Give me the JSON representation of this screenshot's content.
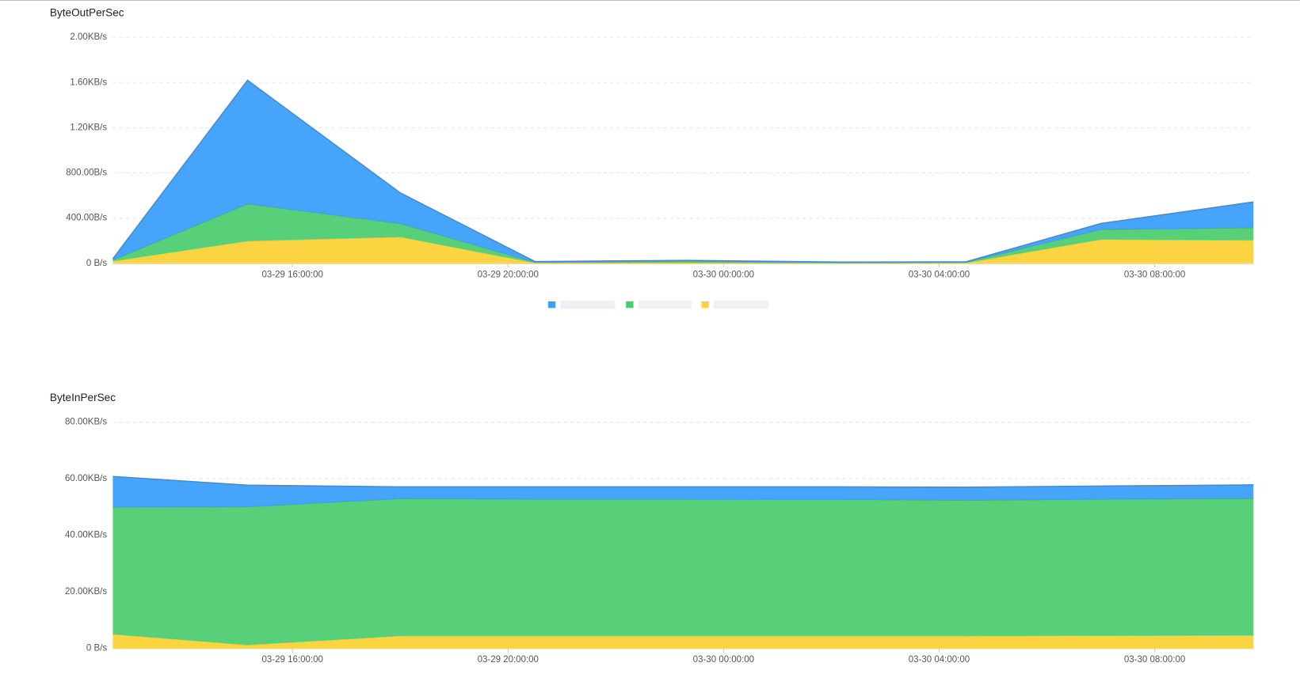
{
  "chart_data": [
    {
      "type": "area",
      "stacked": true,
      "title": "ByteOutPerSec",
      "x": [
        "03-29 12:40:00",
        "03-29 15:10:00",
        "03-29 18:00:00",
        "03-29 20:30:00",
        "03-29 23:20:00",
        "03-30 02:10:00",
        "03-30 04:30:00",
        "03-30 07:00:00",
        "03-30 09:50:00"
      ],
      "xlim": [
        "03-29 12:40:00",
        "03-30 09:50:00"
      ],
      "xticks": [
        "03-29 16:00:00",
        "03-29 20:00:00",
        "03-30 00:00:00",
        "03-30 04:00:00",
        "03-30 08:00:00"
      ],
      "ylim": [
        0,
        2000
      ],
      "yticks": [
        {
          "value": 0,
          "label": "0 B/s"
        },
        {
          "value": 400,
          "label": "400.00B/s"
        },
        {
          "value": 800,
          "label": "800.00B/s"
        },
        {
          "value": 1200,
          "label": "1.20KB/s"
        },
        {
          "value": 1600,
          "label": "1.60KB/s"
        },
        {
          "value": 2000,
          "label": "2.00KB/s"
        }
      ],
      "grid": true,
      "series": [
        {
          "color": "#fad337",
          "values": [
            20,
            198,
            234,
            5,
            5,
            3,
            5,
            212,
            205
          ]
        },
        {
          "color": "#4fcc72",
          "values": [
            10,
            329,
            118,
            5,
            15,
            5,
            5,
            88,
            110
          ]
        },
        {
          "color": "#3d9ffb",
          "values": [
            10,
            1092,
            271,
            5,
            5,
            2,
            3,
            52,
            227
          ]
        }
      ]
    },
    {
      "type": "area",
      "stacked": true,
      "title": "ByteInPerSec",
      "x": [
        "03-29 12:40:00",
        "03-29 15:10:00",
        "03-29 18:00:00",
        "03-29 20:30:00",
        "03-29 23:20:00",
        "03-30 02:10:00",
        "03-30 04:30:00",
        "03-30 07:00:00",
        "03-30 09:50:00"
      ],
      "xlim": [
        "03-29 12:40:00",
        "03-30 09:50:00"
      ],
      "xticks": [
        "03-29 16:00:00",
        "03-29 20:00:00",
        "03-30 00:00:00",
        "03-30 04:00:00",
        "03-30 08:00:00"
      ],
      "ylim": [
        0,
        80000
      ],
      "yticks": [
        {
          "value": 0,
          "label": "0 B/s"
        },
        {
          "value": 20000,
          "label": "20.00KB/s"
        },
        {
          "value": 40000,
          "label": "40.00KB/s"
        },
        {
          "value": 60000,
          "label": "60.00KB/s"
        },
        {
          "value": 80000,
          "label": "80.00KB/s"
        }
      ],
      "grid": true,
      "series": [
        {
          "color": "#fad337",
          "values": [
            5000,
            1200,
            4400,
            4400,
            4400,
            4400,
            4400,
            4500,
            4600
          ]
        },
        {
          "color": "#4fcc72",
          "values": [
            45000,
            48900,
            48600,
            48400,
            48400,
            48300,
            48000,
            48300,
            48400
          ]
        },
        {
          "color": "#3d9ffb",
          "values": [
            10800,
            7600,
            4100,
            4300,
            4300,
            4400,
            4600,
            4600,
            4800
          ]
        }
      ]
    }
  ]
}
